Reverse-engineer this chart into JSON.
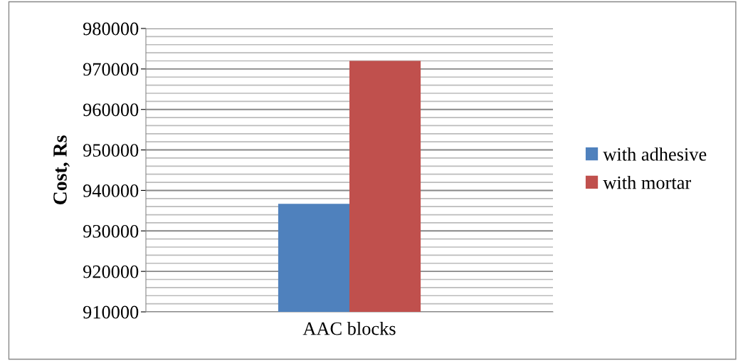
{
  "chart_data": {
    "type": "bar",
    "ylabel": "Cost, Rs",
    "categories": [
      "AAC blocks"
    ],
    "series": [
      {
        "name": "with adhesive",
        "color": "#4f81bd",
        "values": [
          936700
        ]
      },
      {
        "name": "with mortar",
        "color": "#c0504d",
        "values": [
          972000
        ]
      }
    ],
    "ylim": [
      910000,
      980000
    ],
    "yticks": [
      910000,
      {
        "value": 912000,
        "label": null
      },
      {
        "value": 914000,
        "label": null
      },
      {
        "value": 916000,
        "label": null
      },
      {
        "value": 918000,
        "label": null
      },
      920000,
      {
        "value": 922000,
        "label": null
      },
      {
        "value": 924000,
        "label": null
      },
      {
        "value": 926000,
        "label": null
      },
      {
        "value": 928000,
        "label": null
      },
      930000,
      {
        "value": 932000,
        "label": null
      },
      {
        "value": 934000,
        "label": null
      },
      {
        "value": 936000,
        "label": null
      },
      {
        "value": 938000,
        "label": null
      },
      940000,
      {
        "value": 942000,
        "label": null
      },
      {
        "value": 944000,
        "label": null
      },
      {
        "value": 946000,
        "label": null
      },
      {
        "value": 948000,
        "label": null
      },
      950000,
      {
        "value": 952000,
        "label": null
      },
      {
        "value": 954000,
        "label": null
      },
      {
        "value": 956000,
        "label": null
      },
      {
        "value": 958000,
        "label": null
      },
      960000,
      {
        "value": 962000,
        "label": null
      },
      {
        "value": 964000,
        "label": null
      },
      {
        "value": 966000,
        "label": null
      },
      {
        "value": 968000,
        "label": null
      },
      970000,
      {
        "value": 972000,
        "label": null
      },
      {
        "value": 974000,
        "label": null
      },
      {
        "value": 976000,
        "label": null
      },
      {
        "value": 978000,
        "label": null
      },
      980000
    ],
    "grid": "y",
    "legend": "right"
  }
}
